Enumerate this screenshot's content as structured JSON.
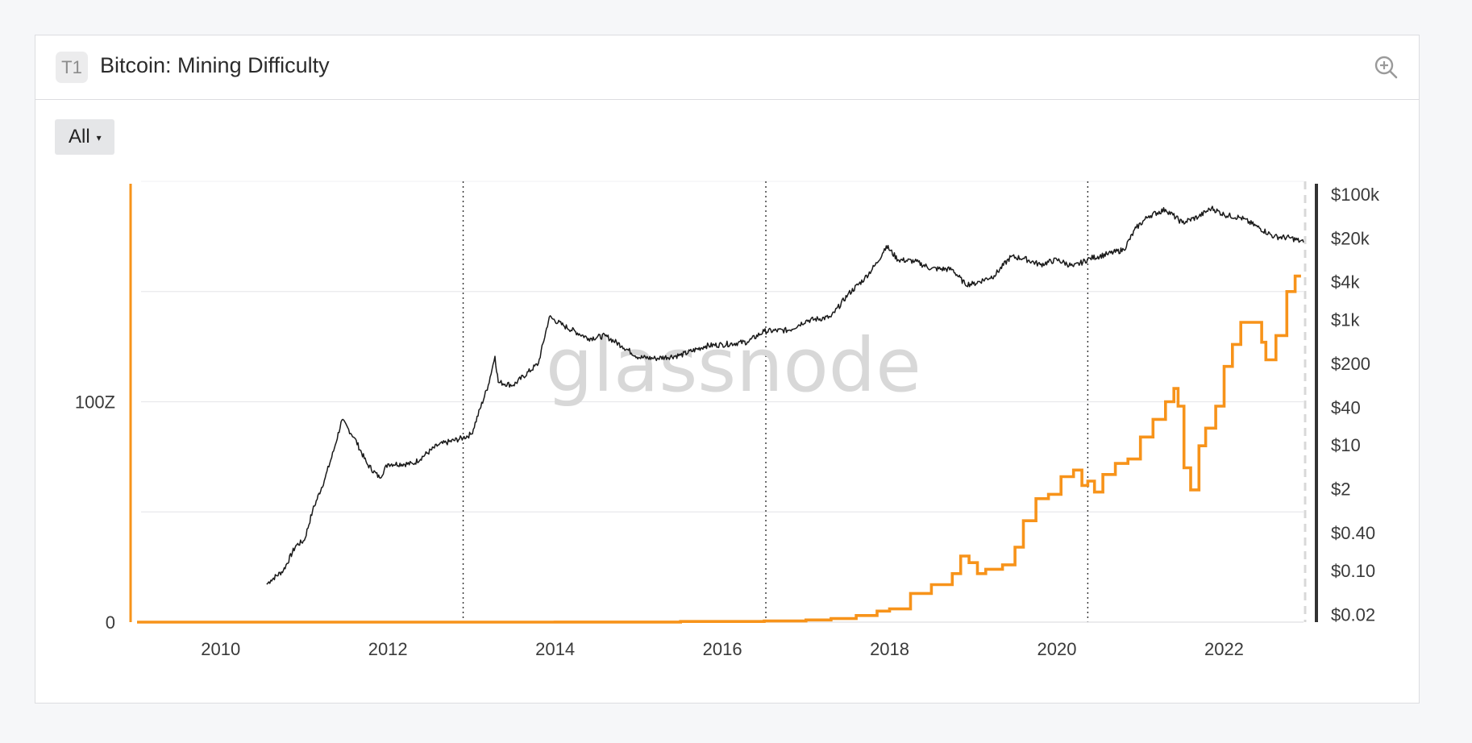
{
  "header": {
    "tier_badge": "T1",
    "title": "Bitcoin: Mining Difficulty",
    "zoom_icon": "zoom-in-icon"
  },
  "controls": {
    "range_label": "All",
    "range_caret": "▾"
  },
  "watermark": "glassnode",
  "colors": {
    "difficulty": "#f7931a",
    "price": "#1a1a1a",
    "halving_line": "#333333",
    "grid": "#e9e9ec",
    "right_axis_bar": "#333333"
  },
  "chart_data": {
    "type": "line",
    "title": "Bitcoin: Mining Difficulty",
    "x_range": [
      2009.0,
      2022.95
    ],
    "x_ticks": [
      "2010",
      "2012",
      "2014",
      "2016",
      "2018",
      "2020",
      "2022"
    ],
    "left_axis": {
      "ticks": [
        {
          "label": "0",
          "value": 0
        },
        {
          "label": "100Z",
          "value": 100
        }
      ],
      "grid_values": [
        0,
        50,
        100,
        150
      ],
      "range": [
        0,
        200
      ],
      "unit": "Z"
    },
    "right_axis": {
      "scale": "log",
      "range": [
        0.015,
        160000
      ],
      "ticks": [
        {
          "label": "$100k",
          "value": 100000
        },
        {
          "label": "$20k",
          "value": 20000
        },
        {
          "label": "$4k",
          "value": 4000
        },
        {
          "label": "$1k",
          "value": 1000
        },
        {
          "label": "$200",
          "value": 200
        },
        {
          "label": "$40",
          "value": 40
        },
        {
          "label": "$10",
          "value": 10
        },
        {
          "label": "$2",
          "value": 2
        },
        {
          "label": "$0.40",
          "value": 0.4
        },
        {
          "label": "$0.10",
          "value": 0.1
        },
        {
          "label": "$0.02",
          "value": 0.02
        }
      ]
    },
    "halvings": [
      2012.9,
      2016.52,
      2020.37
    ],
    "series": [
      {
        "name": "Difficulty",
        "axis": "left",
        "step": true,
        "x": [
          2009.0,
          2014.0,
          2015.5,
          2016.5,
          2017.0,
          2017.3,
          2017.6,
          2017.85,
          2018.0,
          2018.25,
          2018.5,
          2018.75,
          2018.85,
          2018.95,
          2019.05,
          2019.15,
          2019.35,
          2019.5,
          2019.6,
          2019.75,
          2019.9,
          2020.05,
          2020.2,
          2020.3,
          2020.37,
          2020.45,
          2020.55,
          2020.7,
          2020.85,
          2021.0,
          2021.15,
          2021.3,
          2021.4,
          2021.45,
          2021.52,
          2021.6,
          2021.7,
          2021.78,
          2021.9,
          2022.0,
          2022.1,
          2022.2,
          2022.35,
          2022.45,
          2022.5,
          2022.62,
          2022.75,
          2022.85,
          2022.92
        ],
        "values": [
          0.0,
          0.05,
          0.3,
          0.5,
          1.0,
          1.6,
          3.0,
          5.0,
          6.0,
          13.0,
          17.0,
          22.0,
          30.0,
          27.0,
          22.0,
          24.0,
          26.0,
          34.0,
          46.0,
          56.0,
          58.0,
          66.0,
          69.0,
          62.0,
          64.0,
          59.0,
          67.0,
          72.0,
          74.0,
          84.0,
          92.0,
          100.0,
          106.0,
          98.0,
          70.0,
          60.0,
          80.0,
          88.0,
          98.0,
          116.0,
          126.0,
          136.0,
          136.0,
          127.0,
          119.0,
          130.0,
          150.0,
          157.0,
          157.0
        ]
      },
      {
        "name": "Price",
        "axis": "right",
        "x": [
          2010.55,
          2010.6,
          2010.75,
          2010.9,
          2011.0,
          2011.1,
          2011.25,
          2011.35,
          2011.45,
          2011.6,
          2011.75,
          2011.9,
          2012.0,
          2012.3,
          2012.6,
          2012.9,
          2013.0,
          2013.2,
          2013.28,
          2013.32,
          2013.5,
          2013.8,
          2013.93,
          2014.1,
          2014.4,
          2014.6,
          2014.8,
          2015.0,
          2015.2,
          2015.5,
          2015.8,
          2016.0,
          2016.3,
          2016.5,
          2016.8,
          2017.0,
          2017.3,
          2017.5,
          2017.7,
          2017.85,
          2017.96,
          2018.1,
          2018.3,
          2018.5,
          2018.75,
          2018.9,
          2019.0,
          2019.25,
          2019.45,
          2019.6,
          2019.8,
          2020.0,
          2020.2,
          2020.4,
          2020.6,
          2020.8,
          2020.95,
          2021.1,
          2021.3,
          2021.5,
          2021.7,
          2021.85,
          2022.0,
          2022.2,
          2022.4,
          2022.6,
          2022.8,
          2022.95
        ],
        "values": [
          0.06,
          0.07,
          0.1,
          0.25,
          0.3,
          0.9,
          3,
          8,
          25,
          13,
          5,
          3,
          5,
          5,
          10,
          13,
          15,
          90,
          260,
          100,
          90,
          200,
          1100,
          800,
          500,
          550,
          380,
          250,
          240,
          270,
          380,
          400,
          440,
          650,
          680,
          960,
          1100,
          2500,
          4500,
          8000,
          15000,
          9000,
          8500,
          6500,
          6300,
          3700,
          3700,
          5000,
          10000,
          9500,
          7500,
          9000,
          7000,
          9500,
          11000,
          13000,
          29000,
          45000,
          57000,
          35000,
          44000,
          60000,
          47000,
          42000,
          30000,
          21000,
          20000,
          17000
        ]
      }
    ]
  }
}
